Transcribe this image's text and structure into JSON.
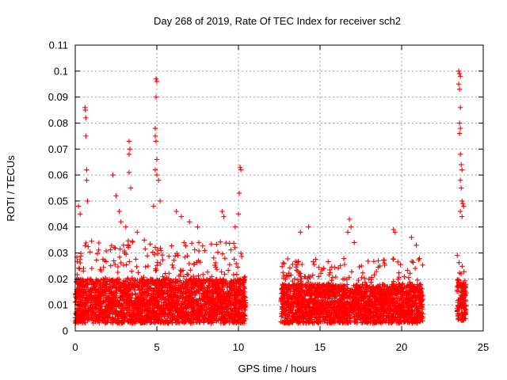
{
  "chart_data": {
    "type": "scatter",
    "title": "Day 268 of 2019, Rate Of TEC Index for receiver sch2",
    "xlabel": "GPS time / hours",
    "ylabel": "ROTI / TECUs",
    "xlim": [
      0,
      25
    ],
    "ylim": [
      0,
      0.11
    ],
    "xticks": [
      0,
      5,
      10,
      15,
      20,
      25
    ],
    "xtick_labels": [
      "0",
      "5",
      "10",
      "15",
      "20",
      "25"
    ],
    "yticks": [
      0,
      0.01,
      0.02,
      0.03,
      0.04,
      0.05,
      0.06,
      0.07,
      0.08,
      0.09,
      0.1,
      0.11
    ],
    "ytick_labels": [
      "0",
      "0.01",
      "0.02",
      "0.03",
      "0.04",
      "0.05",
      "0.06",
      "0.07",
      "0.08",
      "0.09",
      "0.1",
      "0.11"
    ],
    "grid": true,
    "marker": "+",
    "color": "#ff0000",
    "series": [
      {
        "name": "ROTI",
        "segments": [
          {
            "x_range": [
              0.0,
              10.45
            ],
            "baseline": [
              0.003,
              0.02
            ],
            "peak": 0.035
          },
          {
            "x_range": [
              12.6,
              21.3
            ],
            "baseline": [
              0.003,
              0.018
            ],
            "peak": 0.028
          },
          {
            "x_range": [
              23.4,
              23.95
            ],
            "baseline": [
              0.004,
              0.02
            ],
            "peak": 0.03
          }
        ],
        "highlighted_points": [
          {
            "x": 0.2,
            "y": 0.048
          },
          {
            "x": 0.3,
            "y": 0.045
          },
          {
            "x": 0.6,
            "y": 0.086
          },
          {
            "x": 0.62,
            "y": 0.085
          },
          {
            "x": 0.65,
            "y": 0.082
          },
          {
            "x": 0.65,
            "y": 0.075
          },
          {
            "x": 0.7,
            "y": 0.062
          },
          {
            "x": 0.7,
            "y": 0.058
          },
          {
            "x": 0.75,
            "y": 0.05
          },
          {
            "x": 2.3,
            "y": 0.06
          },
          {
            "x": 2.5,
            "y": 0.052
          },
          {
            "x": 2.7,
            "y": 0.046
          },
          {
            "x": 2.8,
            "y": 0.042
          },
          {
            "x": 3.3,
            "y": 0.073
          },
          {
            "x": 3.35,
            "y": 0.07
          },
          {
            "x": 3.3,
            "y": 0.068
          },
          {
            "x": 3.3,
            "y": 0.061
          },
          {
            "x": 3.4,
            "y": 0.055
          },
          {
            "x": 3.1,
            "y": 0.04
          },
          {
            "x": 3.8,
            "y": 0.038
          },
          {
            "x": 4.95,
            "y": 0.097
          },
          {
            "x": 5.0,
            "y": 0.096
          },
          {
            "x": 4.95,
            "y": 0.09
          },
          {
            "x": 4.9,
            "y": 0.078
          },
          {
            "x": 4.9,
            "y": 0.075
          },
          {
            "x": 4.95,
            "y": 0.073
          },
          {
            "x": 5.0,
            "y": 0.066
          },
          {
            "x": 4.9,
            "y": 0.062
          },
          {
            "x": 5.0,
            "y": 0.06
          },
          {
            "x": 5.1,
            "y": 0.058
          },
          {
            "x": 5.2,
            "y": 0.05
          },
          {
            "x": 4.8,
            "y": 0.048
          },
          {
            "x": 6.2,
            "y": 0.046
          },
          {
            "x": 6.5,
            "y": 0.044
          },
          {
            "x": 7.0,
            "y": 0.042
          },
          {
            "x": 7.5,
            "y": 0.04
          },
          {
            "x": 9.0,
            "y": 0.046
          },
          {
            "x": 9.1,
            "y": 0.044
          },
          {
            "x": 9.8,
            "y": 0.04
          },
          {
            "x": 10.1,
            "y": 0.063
          },
          {
            "x": 10.15,
            "y": 0.062
          },
          {
            "x": 10.05,
            "y": 0.053
          },
          {
            "x": 10.0,
            "y": 0.045
          },
          {
            "x": 13.8,
            "y": 0.038
          },
          {
            "x": 14.3,
            "y": 0.04
          },
          {
            "x": 16.8,
            "y": 0.043
          },
          {
            "x": 16.9,
            "y": 0.04
          },
          {
            "x": 16.7,
            "y": 0.038
          },
          {
            "x": 17.1,
            "y": 0.034
          },
          {
            "x": 19.5,
            "y": 0.039
          },
          {
            "x": 19.6,
            "y": 0.038
          },
          {
            "x": 20.6,
            "y": 0.036
          },
          {
            "x": 20.9,
            "y": 0.033
          },
          {
            "x": 23.5,
            "y": 0.1
          },
          {
            "x": 23.55,
            "y": 0.099
          },
          {
            "x": 23.6,
            "y": 0.098
          },
          {
            "x": 23.5,
            "y": 0.095
          },
          {
            "x": 23.55,
            "y": 0.093
          },
          {
            "x": 23.6,
            "y": 0.086
          },
          {
            "x": 23.55,
            "y": 0.08
          },
          {
            "x": 23.6,
            "y": 0.078
          },
          {
            "x": 23.55,
            "y": 0.076
          },
          {
            "x": 23.6,
            "y": 0.068
          },
          {
            "x": 23.65,
            "y": 0.064
          },
          {
            "x": 23.7,
            "y": 0.062
          },
          {
            "x": 23.6,
            "y": 0.058
          },
          {
            "x": 23.65,
            "y": 0.055
          },
          {
            "x": 23.7,
            "y": 0.05
          },
          {
            "x": 23.75,
            "y": 0.049
          },
          {
            "x": 23.8,
            "y": 0.048
          },
          {
            "x": 23.6,
            "y": 0.046
          },
          {
            "x": 23.7,
            "y": 0.044
          }
        ]
      }
    ]
  }
}
